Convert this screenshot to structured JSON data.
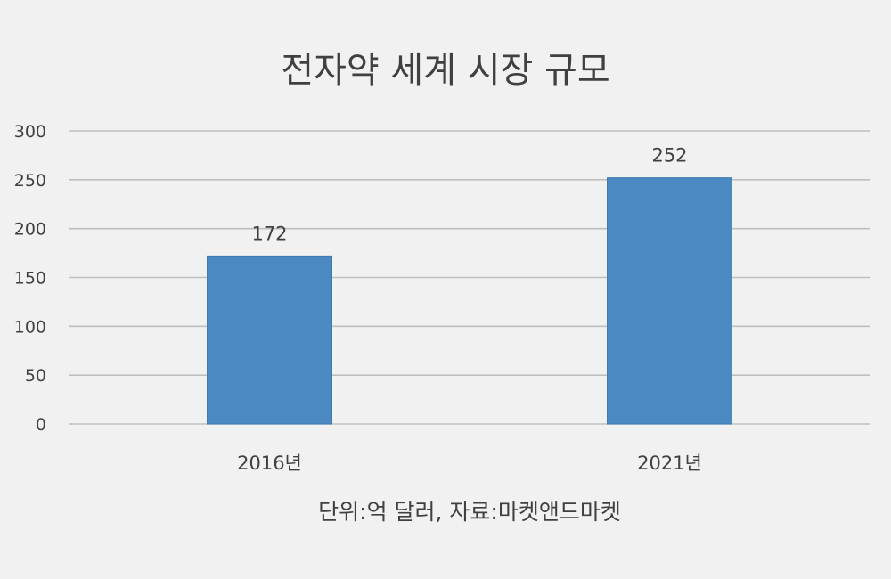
{
  "chart_data": {
    "type": "bar",
    "title": "전자약 세계 시장 규모",
    "categories": [
      "2016년",
      "2021년"
    ],
    "series": [
      {
        "values": [
          172,
          252
        ]
      }
    ],
    "data_labels": [
      "172",
      "252"
    ],
    "y_ticks": [
      "0",
      "50",
      "100",
      "150",
      "200",
      "250",
      "300"
    ],
    "ylim": [
      0,
      300
    ],
    "grid": true,
    "legend": "none",
    "bar_color": "#4a89c1",
    "footnote": "단위:억 달러, 자료:마켓앤드마켓"
  }
}
